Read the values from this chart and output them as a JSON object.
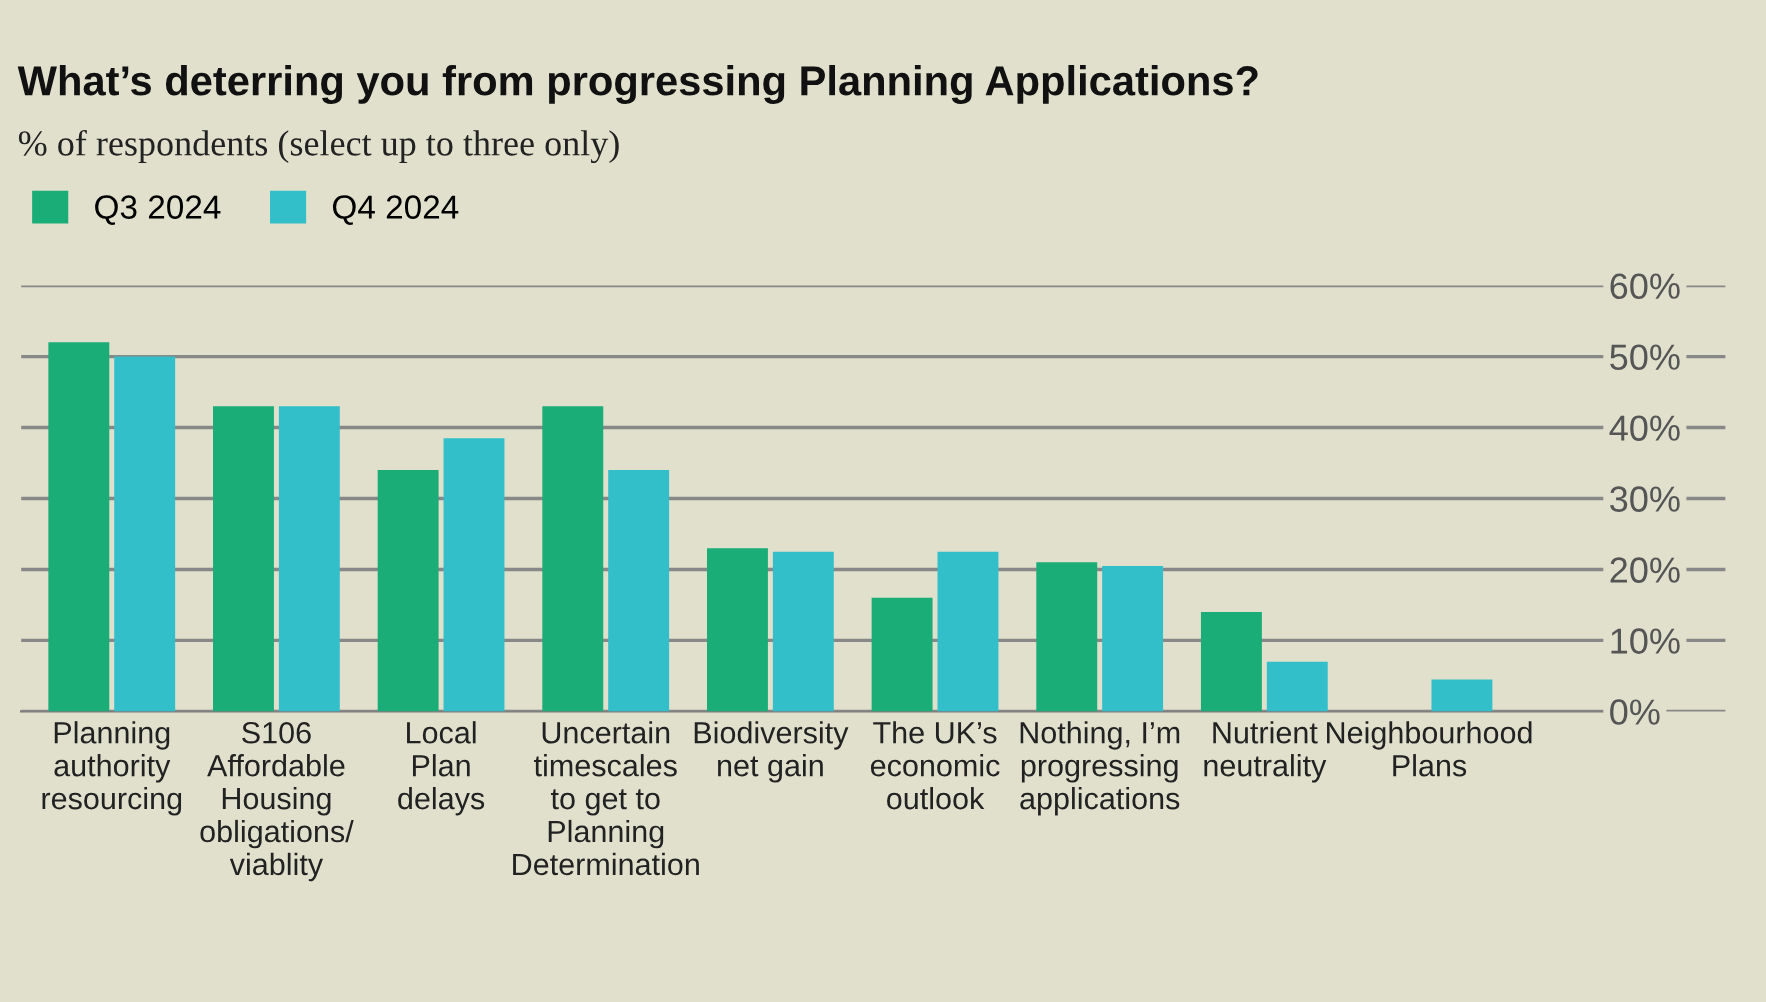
{
  "chart_data": {
    "type": "bar",
    "title": "What’s deterring you from progressing Planning Applications?",
    "subtitle": "% of respondents (select up to three only)",
    "categories": [
      "Planning\nauthority\nresourcing",
      "S106\nAffordable\nHousing\nobligations/\nviablity",
      "Local\nPlan\ndelays",
      "Uncertain\ntimescales\nto get to\nPlanning\nDetermination",
      "Biodiversity\nnet gain",
      "The UK’s\neconomic\noutlook",
      "Nothing, I’m\nprogressing\napplications",
      "Nutrient\nneutrality",
      "Neighbourhood\nPlans"
    ],
    "series": [
      {
        "name": "Q3 2024",
        "color": "#1aad78",
        "values": [
          52,
          43,
          34,
          43,
          23,
          16,
          21,
          14,
          0
        ]
      },
      {
        "name": "Q4 2024",
        "color": "#33bfca",
        "values": [
          50,
          43,
          38.5,
          34,
          22.5,
          22.5,
          20.5,
          7,
          4.5
        ]
      }
    ],
    "ylim": [
      0,
      60
    ],
    "yticks": [
      {
        "value": 0,
        "label": "0%"
      },
      {
        "value": 10,
        "label": "10%"
      },
      {
        "value": 20,
        "label": "20%"
      },
      {
        "value": 30,
        "label": "30%"
      },
      {
        "value": 40,
        "label": "40%"
      },
      {
        "value": 50,
        "label": "50%"
      },
      {
        "value": 60,
        "label": "60%"
      }
    ],
    "grid": "y",
    "legend": "top left"
  }
}
